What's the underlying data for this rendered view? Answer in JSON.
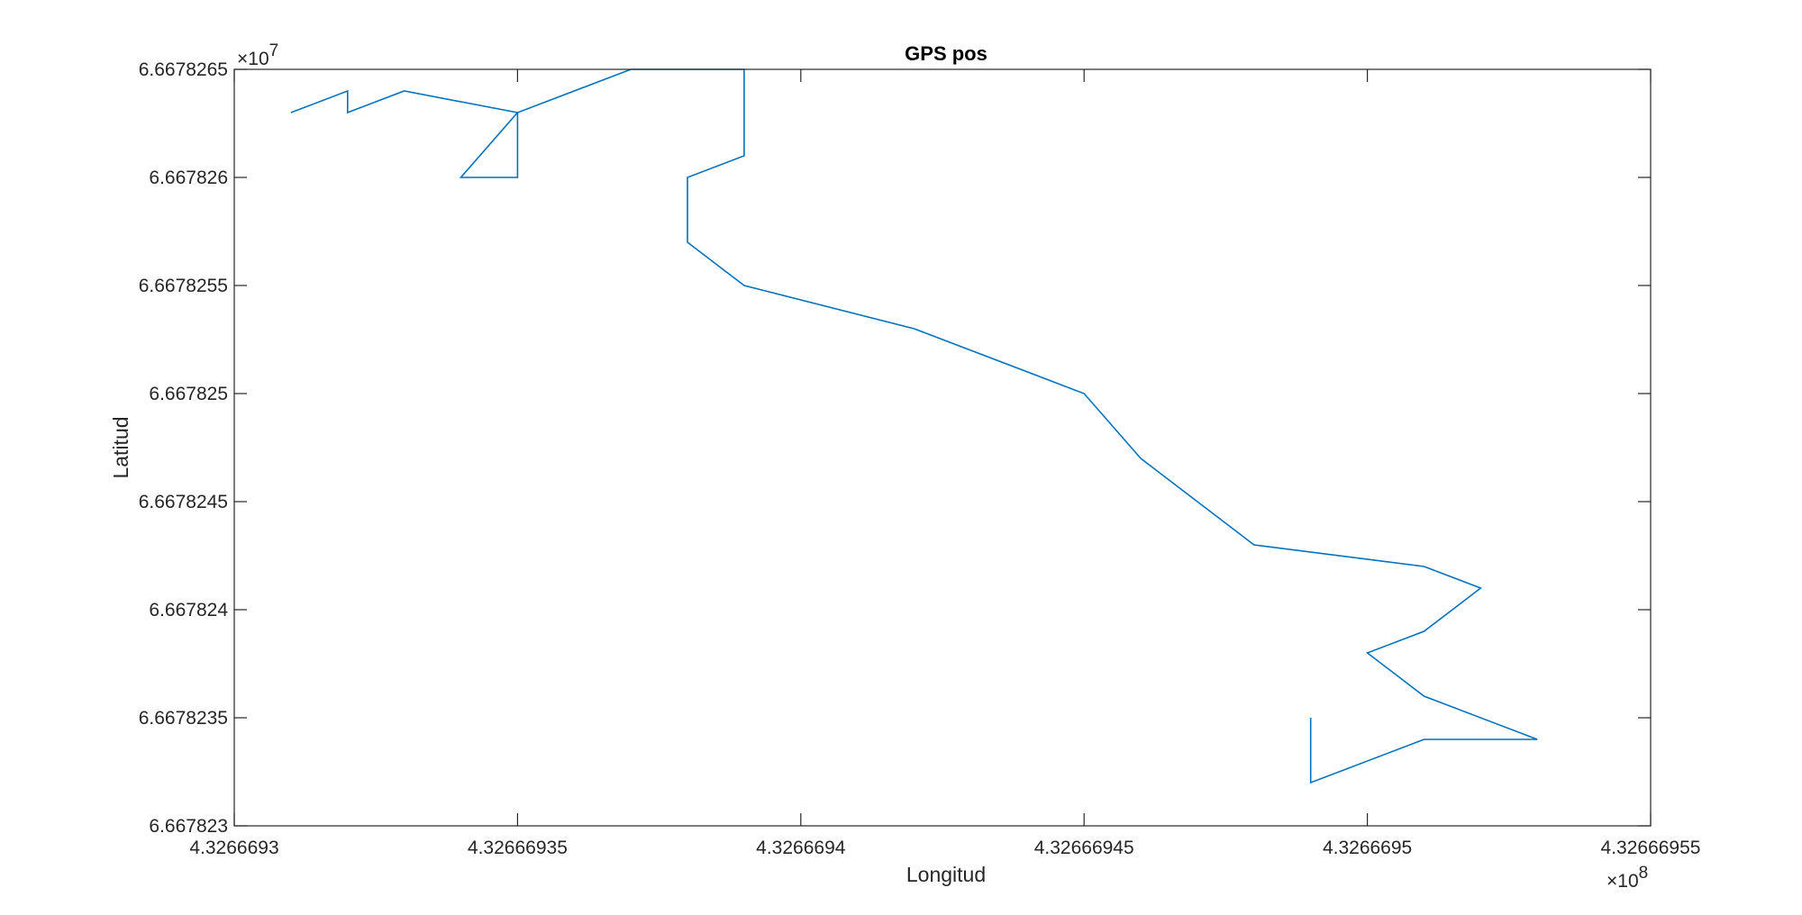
{
  "chart_data": {
    "type": "line",
    "title": "GPS pos",
    "xlabel": "Longitud",
    "ylabel": "Latitud",
    "x_multiplier": "×10",
    "x_exponent": "8",
    "y_multiplier": "×10",
    "y_exponent": "7",
    "xlim": [
      4.3266693,
      4.32666955
    ],
    "ylim": [
      6.667823,
      6.6678265
    ],
    "x_ticks": [
      4.3266693,
      4.32666935,
      4.3266694,
      4.32666945,
      4.3266695,
      4.32666955
    ],
    "x_tick_labels": [
      "4.3266693",
      "4.32666935",
      "4.3266694",
      "4.32666945",
      "4.3266695",
      "4.32666955"
    ],
    "y_ticks": [
      6.667823,
      6.6678235,
      6.667824,
      6.6678245,
      6.667825,
      6.6678255,
      6.667826,
      6.6678265
    ],
    "y_tick_labels": [
      "6.667823",
      "6.6678235",
      "6.667824",
      "6.6678245",
      "6.667825",
      "6.6678255",
      "6.667826",
      "6.6678265"
    ],
    "grid": false,
    "line_color": "#0072BD",
    "series": [
      {
        "x": [
          4.32666949,
          4.32666949,
          4.32666951,
          4.32666953,
          4.32666951,
          4.3266695,
          4.32666951,
          4.32666952,
          4.32666951,
          4.32666948,
          4.32666946,
          4.32666945,
          4.32666942,
          4.32666939,
          4.32666938,
          4.32666938,
          4.32666939,
          4.32666939,
          4.32666937,
          4.32666935,
          4.32666935,
          4.32666934,
          4.32666935,
          4.32666933,
          4.32666932,
          4.32666932,
          4.32666931
        ],
        "y": [
          6.6678235,
          6.6678232,
          6.6678234,
          6.6678234,
          6.6678236,
          6.6678238,
          6.6678239,
          6.6678241,
          6.6678242,
          6.6678243,
          6.6678247,
          6.667825,
          6.6678253,
          6.6678255,
          6.6678257,
          6.667826,
          6.6678261,
          6.6678265,
          6.6678265,
          6.6678263,
          6.667826,
          6.667826,
          6.6678263,
          6.6678264,
          6.6678263,
          6.6678264,
          6.6678263
        ]
      }
    ]
  }
}
